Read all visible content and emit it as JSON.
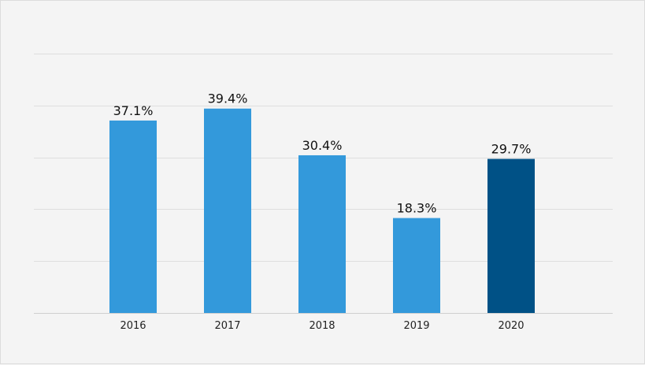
{
  "chart_data": {
    "type": "bar",
    "title": "",
    "xlabel": "",
    "ylabel": "",
    "categories": [
      "2016",
      "2017",
      "2018",
      "2019",
      "2020"
    ],
    "values": [
      37.1,
      39.4,
      30.4,
      18.3,
      29.7
    ],
    "value_labels": [
      "37.1%",
      "39.4%",
      "30.4%",
      "18.3%",
      "29.7%"
    ],
    "ylim": [
      0,
      50
    ],
    "grid": true,
    "legend": "none",
    "colors": {
      "bar": "#3399db",
      "highlight_bar": "#005186",
      "highlight_category": "2020"
    }
  }
}
